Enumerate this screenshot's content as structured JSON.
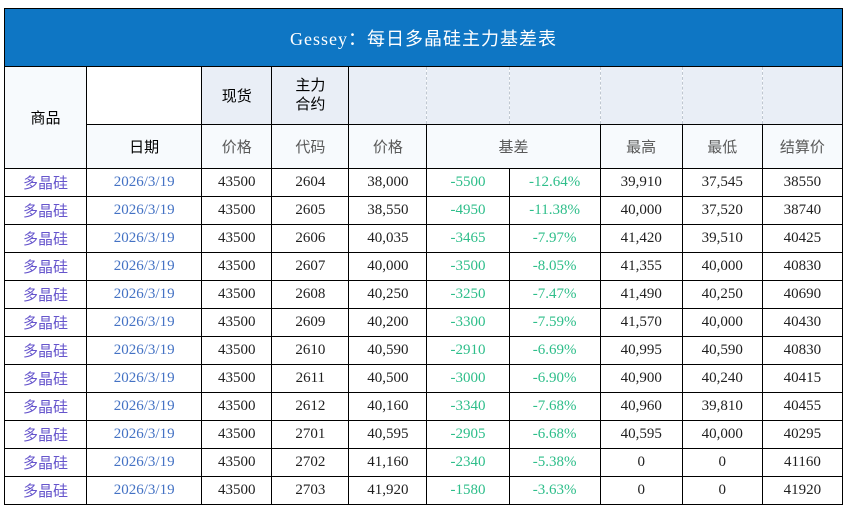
{
  "title_bar": {
    "title": "Gessey：每日多晶硅主力基差表",
    "bg_color": "#0E76C4",
    "text_color": "#FFFFFF"
  },
  "colors": {
    "table_border": "#000000",
    "header_tint": "#E9EEF6",
    "header_light": "#F7FAFD",
    "header_label_gray": "#595959",
    "commodity_purple": "#6655CC",
    "date_blue": "#4472C4",
    "value_black": "#1F1F1F",
    "basis_green": "#2EBE8A",
    "dashed_separator": "#BFC7D1"
  },
  "table": {
    "header": {
      "commodity": "商品",
      "date": "日期",
      "spot": "现货",
      "spot_price": "价格",
      "main_contract_top": "主力",
      "main_contract_bottom": "合约",
      "code": "代码",
      "price": "价格",
      "basis": "基差",
      "high": "最高",
      "low": "最低",
      "settlement": "结算价"
    }
  },
  "chart_data": {
    "type": "table",
    "title": "Gessey：每日多晶硅主力基差表",
    "columns": [
      "商品",
      "日期",
      "现货价格",
      "主力合约代码",
      "价格",
      "基差",
      "基差%",
      "最高",
      "最低",
      "结算价"
    ],
    "rows": [
      [
        "多晶硅",
        "2026/3/19",
        "43500",
        "2604",
        "38,000",
        "-5500",
        "-12.64%",
        "39,910",
        "37,545",
        "38550"
      ],
      [
        "多晶硅",
        "2026/3/19",
        "43500",
        "2605",
        "38,550",
        "-4950",
        "-11.38%",
        "40,000",
        "37,520",
        "38740"
      ],
      [
        "多晶硅",
        "2026/3/19",
        "43500",
        "2606",
        "40,035",
        "-3465",
        "-7.97%",
        "41,420",
        "39,510",
        "40425"
      ],
      [
        "多晶硅",
        "2026/3/19",
        "43500",
        "2607",
        "40,000",
        "-3500",
        "-8.05%",
        "41,355",
        "40,000",
        "40830"
      ],
      [
        "多晶硅",
        "2026/3/19",
        "43500",
        "2608",
        "40,250",
        "-3250",
        "-7.47%",
        "41,490",
        "40,250",
        "40690"
      ],
      [
        "多晶硅",
        "2026/3/19",
        "43500",
        "2609",
        "40,200",
        "-3300",
        "-7.59%",
        "41,570",
        "40,000",
        "40430"
      ],
      [
        "多晶硅",
        "2026/3/19",
        "43500",
        "2610",
        "40,590",
        "-2910",
        "-6.69%",
        "40,995",
        "40,590",
        "40830"
      ],
      [
        "多晶硅",
        "2026/3/19",
        "43500",
        "2611",
        "40,500",
        "-3000",
        "-6.90%",
        "40,900",
        "40,240",
        "40415"
      ],
      [
        "多晶硅",
        "2026/3/19",
        "43500",
        "2612",
        "40,160",
        "-3340",
        "-7.68%",
        "40,960",
        "39,810",
        "40455"
      ],
      [
        "多晶硅",
        "2026/3/19",
        "43500",
        "2701",
        "40,595",
        "-2905",
        "-6.68%",
        "40,595",
        "40,000",
        "40295"
      ],
      [
        "多晶硅",
        "2026/3/19",
        "43500",
        "2702",
        "41,160",
        "-2340",
        "-5.38%",
        "0",
        "0",
        "41160"
      ],
      [
        "多晶硅",
        "2026/3/19",
        "43500",
        "2703",
        "41,920",
        "-1580",
        "-3.63%",
        "0",
        "0",
        "41920"
      ]
    ]
  }
}
